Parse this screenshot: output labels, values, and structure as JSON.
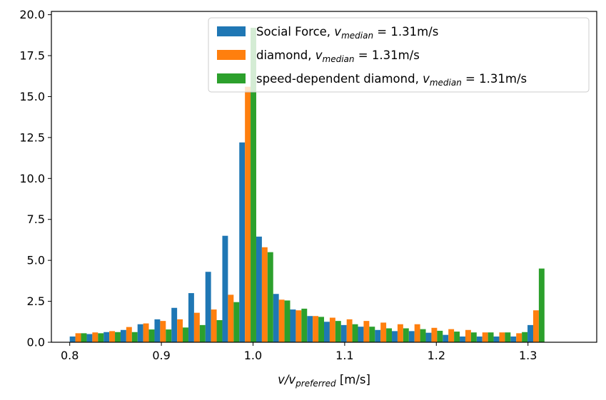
{
  "chart_data": {
    "type": "bar",
    "title": "",
    "xlabel": {
      "main": "v/v",
      "sub": "preferred",
      "unit": " [m/s]"
    },
    "ylabel": "",
    "xlim": [
      0.78,
      1.375
    ],
    "ylim": [
      0,
      20.2
    ],
    "xticks": [
      0.8,
      0.9,
      1.0,
      1.1,
      1.2,
      1.3
    ],
    "xtick_labels": [
      "0.8",
      "0.9",
      "1.0",
      "1.1",
      "1.2",
      "1.3"
    ],
    "yticks": [
      0,
      2.5,
      5.0,
      7.5,
      10.0,
      12.5,
      15.0,
      17.5,
      20.0
    ],
    "ytick_labels": [
      "0.0",
      "2.5",
      "5.0",
      "7.5",
      "10.0",
      "12.5",
      "15.0",
      "17.5",
      "20.0"
    ],
    "grid": false,
    "legend_position": "top-right",
    "bin_start": 0.8,
    "bin_width": 0.0185,
    "series": [
      {
        "name": "Social Force",
        "name_suffix": ", ",
        "stat_symbol": "v",
        "stat_sub": "median",
        "stat_value": " = 1.31m/s",
        "color": "#1f77b4",
        "values": [
          0.35,
          0.5,
          0.62,
          0.75,
          1.1,
          1.4,
          2.1,
          3.0,
          4.3,
          6.5,
          12.2,
          6.45,
          2.95,
          2.0,
          1.6,
          1.25,
          1.05,
          0.95,
          0.75,
          0.68,
          0.68,
          0.58,
          0.45,
          0.35,
          0.35,
          0.35,
          0.35,
          1.05
        ]
      },
      {
        "name": "diamond",
        "name_suffix": ", ",
        "stat_symbol": "v",
        "stat_sub": "median",
        "stat_value": " = 1.31m/s",
        "color": "#ff7f0e",
        "values": [
          0.55,
          0.6,
          0.68,
          0.93,
          1.15,
          1.3,
          1.4,
          1.8,
          2.0,
          2.9,
          15.6,
          5.8,
          2.6,
          1.95,
          1.6,
          1.5,
          1.4,
          1.3,
          1.2,
          1.1,
          1.1,
          0.88,
          0.8,
          0.75,
          0.6,
          0.6,
          0.55,
          1.95
        ]
      },
      {
        "name": "speed-dependent diamond",
        "name_suffix": ", ",
        "stat_symbol": "v",
        "stat_sub": "median",
        "stat_value": " = 1.31m/s",
        "color": "#2ca02c",
        "values": [
          0.55,
          0.55,
          0.62,
          0.62,
          0.78,
          0.78,
          0.9,
          1.05,
          1.35,
          2.45,
          19.2,
          5.5,
          2.55,
          2.05,
          1.55,
          1.3,
          1.1,
          0.95,
          0.85,
          0.85,
          0.8,
          0.7,
          0.65,
          0.6,
          0.6,
          0.6,
          0.62,
          4.5
        ]
      }
    ]
  }
}
